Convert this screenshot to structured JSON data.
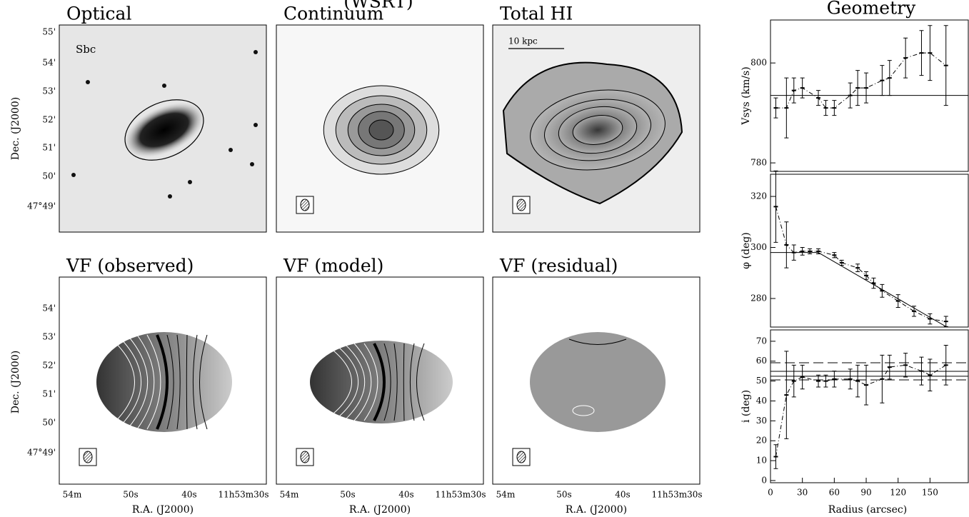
{
  "header": "(WSRT)",
  "panels": [
    {
      "title": "Optical"
    },
    {
      "title": "Continuum"
    },
    {
      "title": "Total HI"
    },
    {
      "title": "VF (observed)"
    },
    {
      "title": "VF (model)"
    },
    {
      "title": "VF (residual)"
    }
  ],
  "annotations": {
    "morphology": "Sbc",
    "scale_bar": "10 kpc"
  },
  "dec_axis_label": "Dec. (J2000)",
  "ra_axis_label": "R.A. (J2000)",
  "dec_ticks_top": [
    "55'",
    "54'",
    "53'",
    "52'",
    "51'",
    "50'",
    "47°49'"
  ],
  "dec_ticks_bottom": [
    "54'",
    "53'",
    "52'",
    "51'",
    "50'",
    "47°49'"
  ],
  "ra_ticks": [
    "54m",
    "50s",
    "40s",
    "11h53m30s"
  ],
  "chart_data": [
    {
      "type": "scatter",
      "title": "Geometry",
      "ylabel": "Vsys (km/s)",
      "x": [
        5,
        15,
        22,
        30,
        45,
        52,
        60,
        75,
        82,
        90,
        105,
        112,
        127,
        142,
        150,
        165
      ],
      "values": [
        791,
        791,
        794.5,
        795,
        793,
        791,
        791,
        793.5,
        795,
        795,
        796.5,
        797,
        801,
        802,
        802,
        799.5
      ],
      "errors": [
        2,
        6,
        2.5,
        2,
        1.5,
        1.5,
        1.5,
        2.5,
        3.5,
        3,
        3,
        3.5,
        4,
        4.5,
        5.5,
        8
      ],
      "ref_lines": [
        {
          "value": 793.5,
          "style": "solid"
        }
      ],
      "xlim": [
        0,
        186
      ],
      "ylim": [
        778.3,
        808.6
      ],
      "yticks": [
        780,
        800
      ]
    },
    {
      "type": "scatter",
      "ylabel": "φ (deg)",
      "x": [
        5,
        15,
        22,
        30,
        37,
        45,
        60,
        67,
        82,
        90,
        97,
        105,
        120,
        135,
        150,
        165
      ],
      "values": [
        316,
        301,
        298,
        298.5,
        298.5,
        298.5,
        297,
        294,
        292,
        289,
        286,
        283,
        279,
        275,
        272,
        271
      ],
      "errors": [
        14,
        9,
        3,
        1.5,
        1,
        1,
        1,
        1,
        1.5,
        1.5,
        2,
        2.5,
        2.5,
        2,
        2,
        2
      ],
      "model": {
        "x": [
          0,
          45,
          165
        ],
        "y": [
          298,
          298,
          269
        ]
      },
      "xlim": [
        0,
        186
      ],
      "ylim": [
        268.8,
        328.7
      ],
      "yticks": [
        280,
        300,
        320
      ]
    },
    {
      "type": "scatter",
      "ylabel": "i (deg)",
      "xlabel": "Radius (arcsec)",
      "x": [
        5,
        15,
        22,
        30,
        45,
        52,
        60,
        75,
        82,
        90,
        105,
        112,
        127,
        142,
        150,
        165
      ],
      "values": [
        12,
        43,
        50,
        52,
        50,
        50,
        51,
        51,
        50,
        48,
        51,
        57,
        58,
        55,
        53,
        58
      ],
      "errors": [
        6,
        22,
        8,
        6,
        3,
        3,
        4,
        5,
        8,
        10,
        12,
        6,
        6,
        7,
        8,
        10
      ],
      "ref_lines": [
        {
          "value": 59.2,
          "style": "dashed"
        },
        {
          "value": 54.9,
          "style": "solid"
        },
        {
          "value": 52.4,
          "style": "solid"
        },
        {
          "value": 50.6,
          "style": "dashed"
        }
      ],
      "xlim": [
        0,
        186
      ],
      "ylim": [
        -1.1,
        75.7
      ],
      "yticks": [
        0,
        10,
        20,
        30,
        40,
        50,
        60,
        70
      ],
      "xticks": [
        0,
        30,
        60,
        90,
        120,
        150
      ]
    }
  ]
}
